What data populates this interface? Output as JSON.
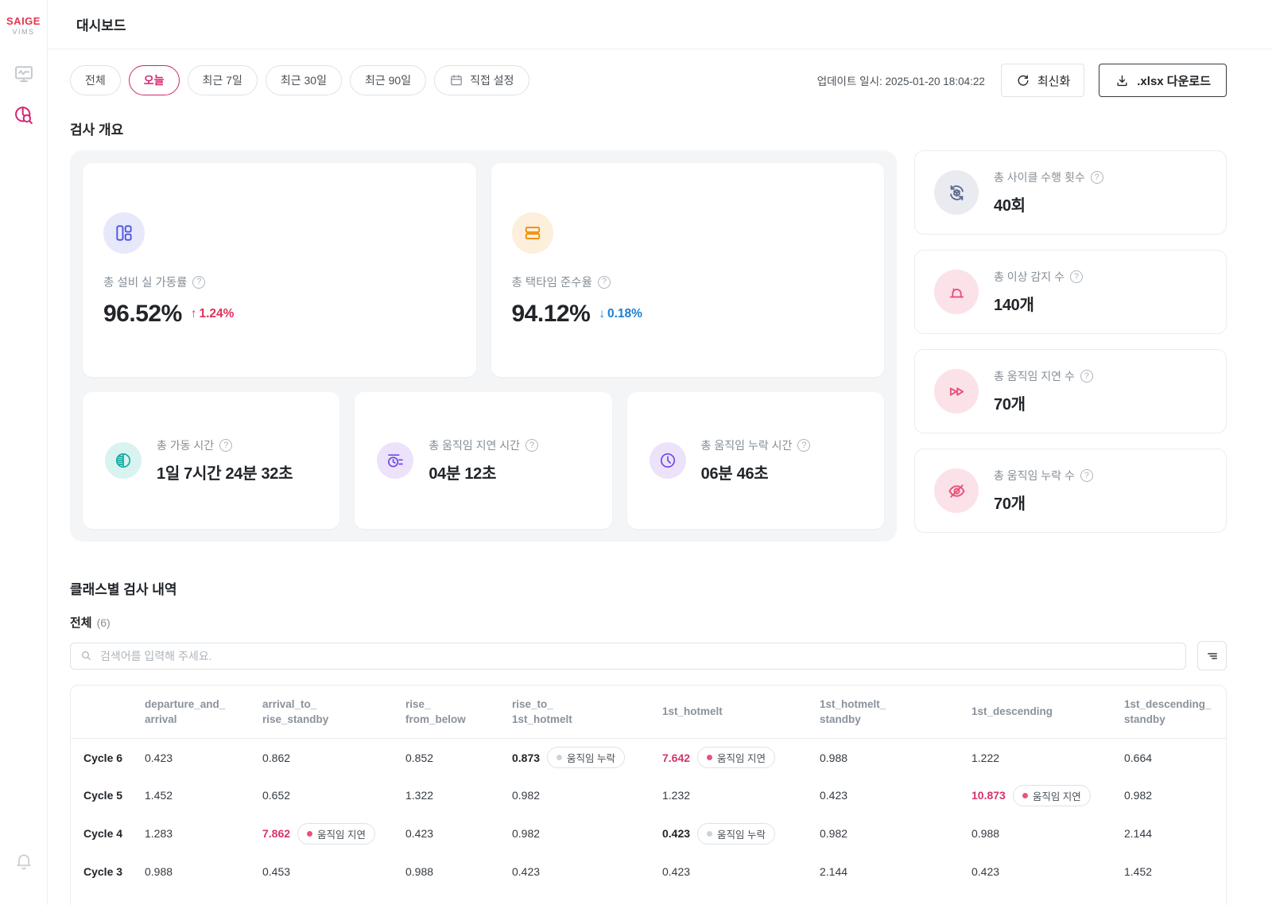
{
  "colors": {
    "brand_red": "#E8344E",
    "accent_pink": "#D6246E",
    "delta_up_red": "#E0315B",
    "delta_down_blue": "#1C7ED6",
    "alert_red": "#D6336C"
  },
  "sidebar": {
    "logo_title": "SAIGE",
    "logo_subtitle": "VIMS"
  },
  "header": {
    "title": "대시보드"
  },
  "filters": {
    "pills": [
      {
        "id": "all",
        "label": "전체"
      },
      {
        "id": "today",
        "label": "오늘",
        "active": true
      },
      {
        "id": "7d",
        "label": "최근 7일"
      },
      {
        "id": "30d",
        "label": "최근 30일"
      },
      {
        "id": "90d",
        "label": "최근 90일"
      },
      {
        "id": "custom",
        "label": "직접 설정",
        "icon": "calendar"
      }
    ],
    "updated_label": "업데이트 일시: 2025-01-20 18:04:22",
    "refresh_label": "최신화",
    "download_label": ".xlsx 다운로드"
  },
  "icons": {
    "help_glyph": "?",
    "up_arrow": "↑",
    "down_arrow": "↓"
  },
  "overview": {
    "title": "검사 개요",
    "big_cards": [
      {
        "id": "utilization",
        "icon": "grid",
        "icon_color": "#4A52E0",
        "icon_bg": "#E7E9FB",
        "label": "총 설비 실 가동률",
        "value": "96.52%",
        "delta": "1.24%",
        "direction": "up"
      },
      {
        "id": "tact-time",
        "icon": "rows",
        "icon_color": "#F08C00",
        "icon_bg": "#FCEFDC",
        "label": "총 택타임 준수율",
        "value": "94.12%",
        "delta": "0.18%",
        "direction": "down"
      }
    ],
    "small_cards": [
      {
        "id": "run-time",
        "icon": "gauge",
        "icon_color": "#15AAA0",
        "icon_bg": "#D8F3F0",
        "label": "총 가동 시간",
        "value": "1일 7시간 24분 32초"
      },
      {
        "id": "delay-time",
        "icon": "timer",
        "icon_color": "#7048E8",
        "icon_bg": "#ECE3FA",
        "label": "총 움직임 지연 시간",
        "value": "04분 12초"
      },
      {
        "id": "missing-time",
        "icon": "clock",
        "icon_color": "#7048E8",
        "icon_bg": "#ECE3FA",
        "label": "총 움직임 누락 시간",
        "value": "06분 46초"
      }
    ],
    "side_cards": [
      {
        "id": "cycle-count",
        "icon": "cycle",
        "icon_color": "#5A6B8C",
        "icon_bg": "#E9EBF1",
        "label": "총 사이클 수행 횟수",
        "value": "40회"
      },
      {
        "id": "anomaly-count",
        "icon": "siren",
        "icon_color": "#E8537B",
        "icon_bg": "#FBE2E9",
        "label": "총 이상 감지 수",
        "value": "140개"
      },
      {
        "id": "delay-count",
        "icon": "fastforward",
        "icon_color": "#E8537B",
        "icon_bg": "#FBE2E9",
        "label": "총 움직임 지연 수",
        "value": "70개"
      },
      {
        "id": "missing-count",
        "icon": "eyeoff",
        "icon_color": "#E8537B",
        "icon_bg": "#FBE2E9",
        "label": "총 움직임 누락 수",
        "value": "70개"
      }
    ]
  },
  "class_section": {
    "title": "클래스별 검사 내역",
    "filter_label": "전체",
    "filter_count": "(6)",
    "search_placeholder": "검색어를 입력해 주세요.",
    "table": {
      "columns": [
        {
          "line1": "departure_and_",
          "line2": "arrival"
        },
        {
          "line1": "arrival_to_",
          "line2": "rise_standby"
        },
        {
          "line1": "rise_",
          "line2": "from_below"
        },
        {
          "line1": "rise_to_",
          "line2": "1st_hotmelt"
        },
        {
          "line1": "1st_hotmelt",
          "line2": ""
        },
        {
          "line1": "1st_hotmelt_",
          "line2": "standby"
        },
        {
          "line1": "1st_descending",
          "line2": ""
        },
        {
          "line1": "1st_descending_",
          "line2": "standby"
        }
      ],
      "badge_types": {
        "missing": {
          "label": "움직임 누락",
          "dot": "#CDD3D9"
        },
        "delay": {
          "label": "움직임 지연",
          "dot": "#E8537B"
        }
      },
      "rows": [
        {
          "label": "Cycle 6",
          "cells": [
            {
              "v": "0.423"
            },
            {
              "v": "0.862"
            },
            {
              "v": "0.852"
            },
            {
              "v": "0.873",
              "s": "bold",
              "badge": "missing"
            },
            {
              "v": "7.642",
              "s": "red",
              "badge": "delay"
            },
            {
              "v": "0.988"
            },
            {
              "v": "1.222"
            },
            {
              "v": "0.664"
            }
          ]
        },
        {
          "label": "Cycle 5",
          "cells": [
            {
              "v": "1.452"
            },
            {
              "v": "0.652"
            },
            {
              "v": "1.322"
            },
            {
              "v": "0.982"
            },
            {
              "v": "1.232"
            },
            {
              "v": "0.423"
            },
            {
              "v": "10.873",
              "s": "red",
              "badge": "delay"
            },
            {
              "v": "0.982"
            }
          ]
        },
        {
          "label": "Cycle 4",
          "cells": [
            {
              "v": "1.283"
            },
            {
              "v": "7.862",
              "s": "red",
              "badge": "delay"
            },
            {
              "v": "0.423"
            },
            {
              "v": "0.982"
            },
            {
              "v": "0.423",
              "s": "bold",
              "badge": "missing"
            },
            {
              "v": "0.982"
            },
            {
              "v": "0.988"
            },
            {
              "v": "2.144"
            }
          ]
        },
        {
          "label": "Cycle 3",
          "cells": [
            {
              "v": "0.988"
            },
            {
              "v": "0.453"
            },
            {
              "v": "0.988"
            },
            {
              "v": "0.423"
            },
            {
              "v": "0.423"
            },
            {
              "v": "2.144"
            },
            {
              "v": "0.423"
            },
            {
              "v": "1.452"
            }
          ]
        }
      ]
    }
  }
}
